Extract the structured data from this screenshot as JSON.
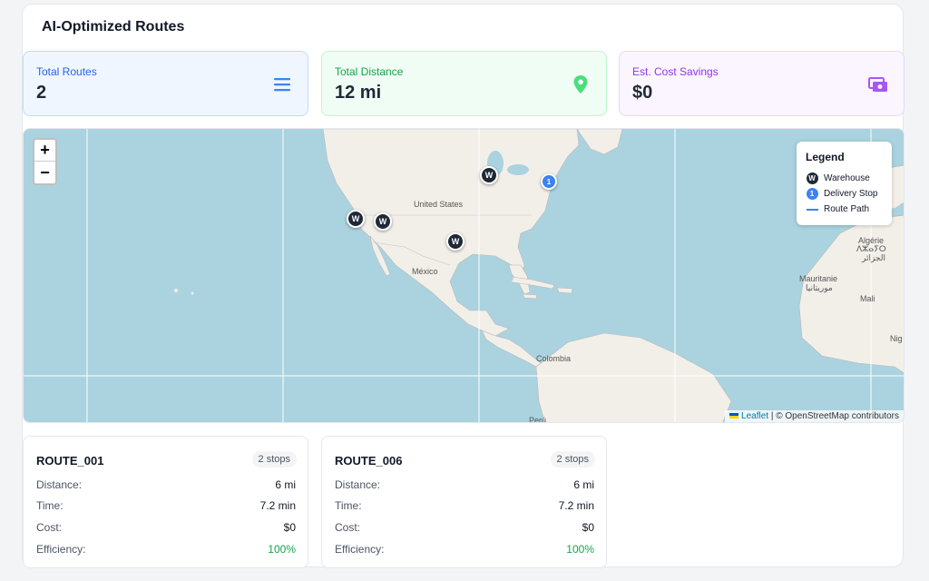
{
  "title": "AI-Optimized Routes",
  "stats": [
    {
      "label": "Total Routes",
      "value": "2",
      "icon": "list-icon",
      "color": "#2563eb"
    },
    {
      "label": "Total Distance",
      "value": "12 mi",
      "icon": "map-pin-icon",
      "color": "#16a34a"
    },
    {
      "label": "Est. Cost Savings",
      "value": "$0",
      "icon": "money-icon",
      "color": "#9333ea"
    }
  ],
  "map": {
    "zoom_in": "+",
    "zoom_out": "−",
    "labels": {
      "us": "United States",
      "mx": "México",
      "co": "Colombia",
      "pe": "Perú",
      "dz1": "Algérie",
      "dz2": "ⴷⵣⴰⵢⵔ",
      "dz3": "الجزائر",
      "mr1": "Mauritanie",
      "mr2": "موريتانيا",
      "ml": "Mali",
      "ng": "Nig"
    },
    "warehouse_symbol": "W",
    "stop_symbol": "1",
    "legend": {
      "title": "Legend",
      "warehouse": "Warehouse",
      "stop": "Delivery Stop",
      "path": "Route Path"
    },
    "attribution": {
      "leaflet": "Leaflet",
      "separator": " | © ",
      "osm": "OpenStreetMap contributors"
    },
    "colors": {
      "warehouse": "#1f2937",
      "stop": "#3b82f6",
      "water": "#aad3df",
      "land": "#f2efe9"
    }
  },
  "routes": [
    {
      "name": "ROUTE_001",
      "badge": "2 stops",
      "rows": [
        {
          "k": "Distance:",
          "v": "6 mi"
        },
        {
          "k": "Time:",
          "v": "7.2 min"
        },
        {
          "k": "Cost:",
          "v": "$0"
        },
        {
          "k": "Efficiency:",
          "v": "100%"
        }
      ]
    },
    {
      "name": "ROUTE_006",
      "badge": "2 stops",
      "rows": [
        {
          "k": "Distance:",
          "v": "6 mi"
        },
        {
          "k": "Time:",
          "v": "7.2 min"
        },
        {
          "k": "Cost:",
          "v": "$0"
        },
        {
          "k": "Efficiency:",
          "v": "100%"
        }
      ]
    }
  ]
}
